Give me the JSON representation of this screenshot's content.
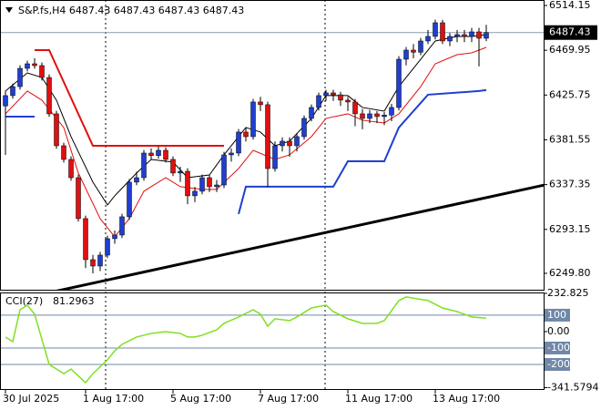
{
  "chart_data": [
    {
      "type": "candlestick",
      "title": "S&P.fs,H4  6487.43 6487.43 6487.43 6487.43",
      "categories": [
        "30 Jul 2025",
        null,
        null,
        null,
        null,
        null,
        null,
        null,
        null,
        null,
        null,
        "1 Aug 17:00",
        null,
        null,
        null,
        null,
        null,
        null,
        null,
        null,
        null,
        null,
        null,
        "5 Aug 17:00",
        null,
        null,
        null,
        null,
        null,
        null,
        null,
        null,
        null,
        null,
        null,
        "7 Aug 17:00",
        null,
        null,
        null,
        null,
        null,
        null,
        null,
        null,
        null,
        null,
        null,
        "11 Aug 17:00",
        null,
        null,
        null,
        null,
        null,
        null,
        null,
        null,
        null,
        null,
        null,
        "13 Aug 17:00",
        null,
        null,
        null,
        null,
        null,
        null,
        null
      ],
      "open": [
        6415.0,
        6425.2,
        6434.1,
        6452.1,
        6456.6,
        6454.8,
        6443.1,
        6407.2,
        6375.7,
        6362.2,
        6344.2,
        6303.8,
        6263.3,
        6257.0,
        6267.8,
        6284.0,
        6287.6,
        6305.6,
        6339.8,
        6344.2,
        6368.5,
        6366.0,
        6371.2,
        6362.2,
        6348.8,
        6350.5,
        6326.3,
        6330.8,
        6344.2,
        6335.3,
        6337.0,
        6366.7,
        6368.5,
        6389.2,
        6384.7,
        6418.9,
        6416.2,
        6353.2,
        6375.7,
        6380.2,
        6375.7,
        6384.7,
        6402.7,
        6413.5,
        6425.2,
        6427.9,
        6426.0,
        6420.7,
        6418.9,
        6407.2,
        6402.7,
        6407.2,
        6404.5,
        6406.0,
        6413.5,
        6461.1,
        6470.1,
        6468.0,
        6479.1,
        6483.6,
        6497.1,
        6479.1,
        6483.6,
        6485.4,
        6483.6,
        6488.1,
        6481.8
      ],
      "high": [
        6430.0,
        6437.1,
        6455.1,
        6459.6,
        6462.0,
        6457.8,
        6446.1,
        6410.2,
        6378.7,
        6365.2,
        6347.2,
        6306.8,
        6268.0,
        6271.0,
        6287.0,
        6292.0,
        6308.6,
        6342.8,
        6350.0,
        6371.5,
        6373.0,
        6375.0,
        6374.2,
        6365.2,
        6355.0,
        6353.5,
        6335.0,
        6347.2,
        6347.2,
        6342.0,
        6369.7,
        6373.0,
        6392.2,
        6394.0,
        6421.9,
        6424.0,
        6419.2,
        6380.0,
        6384.0,
        6384.0,
        6388.0,
        6405.7,
        6416.5,
        6428.2,
        6431.0,
        6431.0,
        6429.0,
        6424.0,
        6422.0,
        6412.0,
        6411.0,
        6410.0,
        6409.0,
        6417.0,
        6464.1,
        6473.1,
        6476.0,
        6482.1,
        6490.0,
        6500.1,
        6500.0,
        6487.0,
        6490.0,
        6490.0,
        6492.0,
        6492.0,
        6495.0
      ],
      "low": [
        6366.7,
        6422.2,
        6431.1,
        6449.1,
        6451.8,
        6440.1,
        6404.2,
        6372.7,
        6359.2,
        6341.2,
        6300.8,
        6255.0,
        6249.8,
        6252.0,
        6264.8,
        6279.0,
        6284.6,
        6302.6,
        6336.8,
        6341.2,
        6362.0,
        6363.0,
        6359.2,
        6345.8,
        6340.0,
        6318.0,
        6320.0,
        6327.8,
        6330.0,
        6330.0,
        6334.0,
        6360.0,
        6365.5,
        6380.0,
        6381.7,
        6410.0,
        6335.0,
        6350.2,
        6370.0,
        6365.0,
        6370.0,
        6381.7,
        6399.7,
        6410.5,
        6420.0,
        6420.0,
        6415.0,
        6410.0,
        6395.0,
        6392.0,
        6398.0,
        6398.0,
        6396.0,
        6400.0,
        6410.5,
        6455.0,
        6462.0,
        6465.0,
        6476.0,
        6480.6,
        6476.1,
        6474.0,
        6478.0,
        6478.0,
        6478.0,
        6454.0,
        6479.0
      ],
      "close": [
        6425.2,
        6434.1,
        6452.1,
        6456.6,
        6454.8,
        6443.1,
        6407.2,
        6375.7,
        6362.2,
        6344.2,
        6303.8,
        6263.3,
        6257.0,
        6267.8,
        6284.0,
        6287.6,
        6305.6,
        6339.8,
        6344.2,
        6368.5,
        6366.0,
        6371.2,
        6362.2,
        6348.8,
        6350.5,
        6326.3,
        6330.8,
        6344.2,
        6335.3,
        6337.0,
        6366.7,
        6368.5,
        6389.2,
        6384.7,
        6418.9,
        6416.2,
        6353.2,
        6375.7,
        6380.2,
        6375.7,
        6384.7,
        6402.7,
        6413.5,
        6425.2,
        6427.9,
        6426.0,
        6420.7,
        6418.9,
        6407.2,
        6402.7,
        6407.2,
        6404.5,
        6406.0,
        6413.5,
        6461.1,
        6470.1,
        6468.0,
        6479.1,
        6483.6,
        6497.1,
        6479.1,
        6483.6,
        6485.4,
        6483.6,
        6488.1,
        6481.8,
        6487.43
      ],
      "up_color": "#1f3fd0",
      "down_color": "#e01010",
      "wick_color": "#000000",
      "overlays": {
        "ma_fast": {
          "color": "#000000",
          "x": [
            0,
            3,
            5,
            7,
            9,
            12,
            14,
            15,
            18,
            20,
            23,
            25,
            28,
            30,
            33,
            35,
            37,
            39,
            42,
            44,
            47,
            49,
            52,
            54,
            57,
            59,
            62,
            64,
            66
          ],
          "values": [
            6429.7,
            6447.6,
            6443.1,
            6420.7,
            6384.7,
            6339.8,
            6317.3,
            6326.3,
            6348.8,
            6362.2,
            6359.6,
            6344.2,
            6346.9,
            6366.7,
            6393.7,
            6389.2,
            6375.7,
            6380.2,
            6402.7,
            6425.2,
            6425.2,
            6413.5,
            6409.9,
            6434.1,
            6461.1,
            6479.1,
            6483.6,
            6483.6,
            6485.4
          ]
        },
        "ma_slow": {
          "color": "#e01010",
          "x": [
            0,
            3,
            5,
            8,
            10,
            13,
            15,
            17,
            19,
            22,
            24,
            27,
            29,
            32,
            34,
            37,
            39,
            42,
            44,
            47,
            49,
            52,
            54,
            57,
            59,
            62,
            64,
            66
          ],
          "values": [
            6407.2,
            6429.7,
            6420.7,
            6393.7,
            6348.8,
            6303.8,
            6285.8,
            6303.8,
            6330.8,
            6344.2,
            6335.3,
            6332.6,
            6332.6,
            6353.2,
            6371.2,
            6362.2,
            6366.7,
            6384.7,
            6402.7,
            6407.2,
            6400.9,
            6398.2,
            6407.2,
            6434.1,
            6456.6,
            6465.6,
            6467.4,
            6472.8
          ]
        },
        "stop_red": {
          "color": "#e01010",
          "x": [
            4,
            6,
            12,
            30
          ],
          "values": [
            6470.1,
            6470.1,
            6375.7,
            6375.7
          ]
        },
        "stop_blue": {
          "color": "#1f3fd0",
          "x": [
            0,
            4,
            5,
            32,
            33,
            45,
            47,
            52,
            54,
            58,
            65,
            66
          ],
          "values": [
            6404.5,
            6404.5,
            null,
            6308.3,
            6335.3,
            6335.3,
            6360.4,
            6360.4,
            6393.7,
            6426.1,
            6429.7,
            6430.6
          ]
        },
        "trendline": {
          "color": "#000000",
          "x": [
            7,
            74
          ],
          "values": [
            6232.3,
            6337.0
          ]
        }
      },
      "current_price": 6487.43,
      "ylim": [
        6233.6,
        6519.55
      ],
      "yticks": [
        6514.15,
        6469.95,
        6425.75,
        6381.55,
        6337.35,
        6293.15,
        {
          "value": 6249.8,
          "label": "6249.80"
        }
      ]
    },
    {
      "type": "line",
      "title": "CCI(27)",
      "color": "#80e020",
      "x": [
        0,
        1,
        2,
        3,
        4,
        6,
        8,
        9,
        11,
        12,
        14,
        15,
        16,
        18,
        20,
        22,
        24,
        25,
        26,
        27,
        29,
        30,
        32,
        34,
        35,
        36,
        37,
        39,
        40,
        42,
        44,
        45,
        47,
        49,
        51,
        52,
        54,
        55,
        58,
        60,
        62,
        64,
        66
      ],
      "values": [
        -33.3,
        -61,
        133,
        161,
        106,
        -200,
        -256,
        -228,
        -311,
        -256,
        -172,
        -117,
        -78,
        -33,
        -11,
        0,
        -11,
        -33,
        -33,
        -22,
        11,
        50,
        89,
        133,
        106,
        33,
        78,
        67,
        89,
        144,
        161,
        122,
        78,
        50,
        50,
        67,
        189,
        211,
        189,
        144,
        122,
        89,
        81.2963
      ],
      "levels": [
        100,
        -100,
        -200
      ],
      "level_color": "#7088a8",
      "ylim": [
        -341.5794,
        232.825
      ],
      "yticks": [
        232.825,
        100,
        {
          "value": 0,
          "label": "0.00"
        },
        -100,
        -200,
        -341.5794
      ]
    }
  ]
}
